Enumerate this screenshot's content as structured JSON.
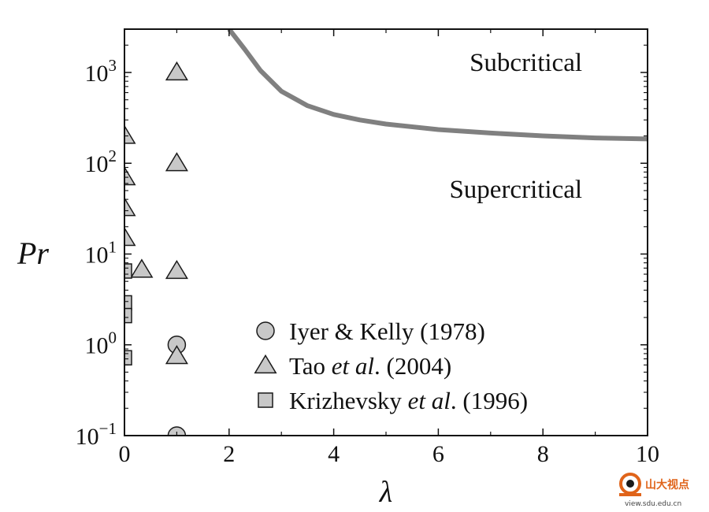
{
  "chart_data": {
    "type": "scatter",
    "xlabel": "λ",
    "ylabel": "Pr",
    "xlim": [
      0,
      10
    ],
    "ylim": [
      0.1,
      3000
    ],
    "yscale": "log",
    "xticks": [
      0,
      2,
      4,
      6,
      8,
      10
    ],
    "yticks": [
      {
        "value": 0.1,
        "base": "10",
        "exp": "−1"
      },
      {
        "value": 1,
        "base": "10",
        "exp": "0"
      },
      {
        "value": 10,
        "base": "10",
        "exp": "1"
      },
      {
        "value": 100,
        "base": "10",
        "exp": "2"
      },
      {
        "value": 1000,
        "base": "10",
        "exp": "3"
      }
    ],
    "grid": false,
    "legend_position": "bottom-right",
    "regions": [
      {
        "label": "Subcritical",
        "x": 8.6,
        "y": 1000
      },
      {
        "label": "Supercritical",
        "x": 8.6,
        "y": 40
      }
    ],
    "boundary": {
      "color": "#808080",
      "x": [
        2.0,
        2.3,
        2.6,
        3.0,
        3.5,
        4.0,
        4.5,
        5.0,
        6.0,
        7.0,
        8.0,
        9.0,
        10.0
      ],
      "y": [
        3000,
        1800,
        1050,
        620,
        430,
        345,
        300,
        270,
        235,
        215,
        200,
        190,
        185
      ]
    },
    "series": [
      {
        "name": "Iyer & Kelly (1978)",
        "name_parts": [
          {
            "t": "Iyer & Kelly (1978)",
            "italic": false
          }
        ],
        "marker": "circle",
        "color": "#c8c8c8",
        "points": [
          [
            1,
            1.0
          ],
          [
            1,
            0.1
          ]
        ]
      },
      {
        "name": "Tao et al. (2004)",
        "name_parts": [
          {
            "t": "Tao ",
            "italic": false
          },
          {
            "t": "et al",
            "italic": true
          },
          {
            "t": ". (2004)",
            "italic": false
          }
        ],
        "marker": "triangle",
        "color": "#c8c8c8",
        "points": [
          [
            0,
            200
          ],
          [
            0,
            70
          ],
          [
            0,
            32
          ],
          [
            0,
            15
          ],
          [
            0.33,
            6.7
          ],
          [
            1,
            1000
          ],
          [
            1,
            100
          ],
          [
            1,
            6.5
          ],
          [
            1,
            0.75
          ]
        ]
      },
      {
        "name": "Krizhevsky et al. (1996)",
        "name_parts": [
          {
            "t": "Krizhevsky ",
            "italic": false
          },
          {
            "t": "et al",
            "italic": true
          },
          {
            "t": ". (1996)",
            "italic": false
          }
        ],
        "marker": "square",
        "color": "#c8c8c8",
        "points": [
          [
            0,
            6.5
          ],
          [
            0,
            2.9
          ],
          [
            0,
            2.1
          ],
          [
            0,
            0.72
          ]
        ]
      }
    ]
  },
  "watermark": {
    "text": "山大视点",
    "url": "view.sdu.edu.cn"
  }
}
